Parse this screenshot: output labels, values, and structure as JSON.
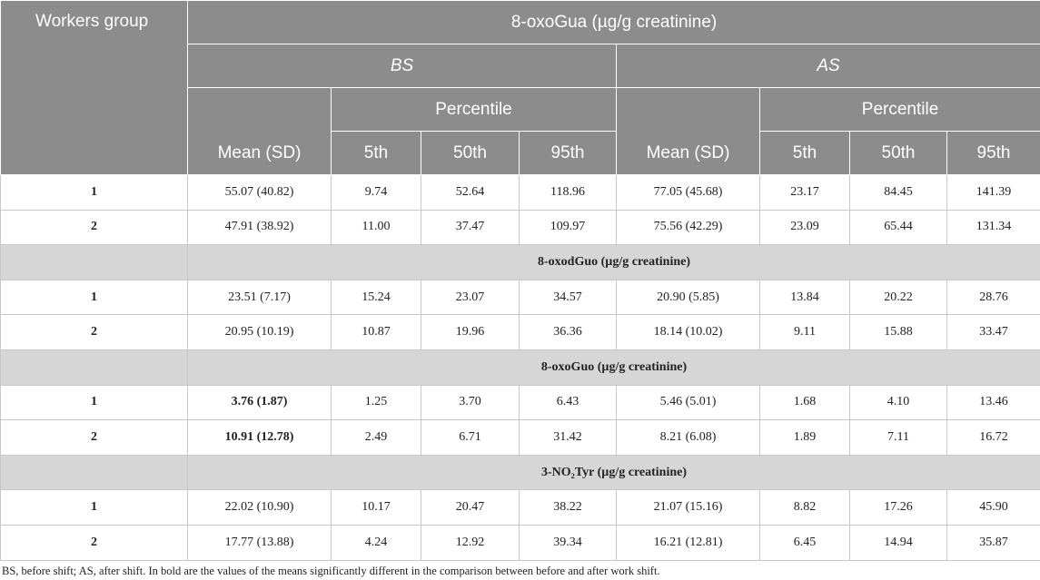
{
  "header": {
    "workers_group": "Workers group",
    "title": "8-oxoGua (µg/g creatinine)",
    "periods": [
      {
        "name": "BS",
        "percentile": "Percentile",
        "mean": "Mean (SD)",
        "percentiles": [
          "5th",
          "50th",
          "95th"
        ]
      },
      {
        "name": "AS",
        "percentile": "Percentile",
        "mean": "Mean (SD)",
        "percentiles": [
          "5th",
          "50th",
          "95th"
        ]
      }
    ]
  },
  "sections": [
    {
      "rows": [
        {
          "group": "1",
          "cells": [
            "55.07 (40.82)",
            "9.74",
            "52.64",
            "118.96",
            "77.05 (45.68)",
            "23.17",
            "84.45",
            "141.39"
          ]
        },
        {
          "group": "2",
          "cells": [
            "47.91 (38.92)",
            "11.00",
            "37.47",
            "109.97",
            "75.56 (42.29)",
            "23.09",
            "65.44",
            "131.34"
          ]
        }
      ]
    },
    {
      "title": "8-oxodGuo (µg/g creatinine)",
      "rows": [
        {
          "group": "1",
          "cells": [
            "23.51 (7.17)",
            "15.24",
            "23.07",
            "34.57",
            "20.90 (5.85)",
            "13.84",
            "20.22",
            "28.76"
          ]
        },
        {
          "group": "2",
          "cells": [
            "20.95 (10.19)",
            "10.87",
            "19.96",
            "36.36",
            "18.14 (10.02)",
            "9.11",
            "15.88",
            "33.47"
          ]
        }
      ]
    },
    {
      "title": "8-oxoGuo (µg/g creatinine)",
      "rows": [
        {
          "group": "1",
          "cells": [
            "3.76 (1.87)",
            "1.25",
            "3.70",
            "6.43",
            "5.46 (5.01)",
            "1.68",
            "4.10",
            "13.46"
          ],
          "bold": [
            0
          ]
        },
        {
          "group": "2",
          "cells": [
            "10.91 (12.78)",
            "2.49",
            "6.71",
            "31.42",
            "8.21 (6.08)",
            "1.89",
            "7.11",
            "16.72"
          ],
          "bold": [
            0
          ]
        }
      ]
    },
    {
      "title": "3-NO₂Tyr (µg/g creatinine)",
      "rows": [
        {
          "group": "1",
          "cells": [
            "22.02 (10.90)",
            "10.17",
            "20.47",
            "38.22",
            "21.07 (15.16)",
            "8.82",
            "17.26",
            "45.90"
          ]
        },
        {
          "group": "2",
          "cells": [
            "17.77 (13.88)",
            "4.24",
            "12.92",
            "39.34",
            "16.21 (12.81)",
            "6.45",
            "14.94",
            "35.87"
          ]
        }
      ]
    }
  ],
  "footnote": "BS, before shift; AS, after shift. In bold are the values of the means significantly different in the comparison between before and after work shift."
}
